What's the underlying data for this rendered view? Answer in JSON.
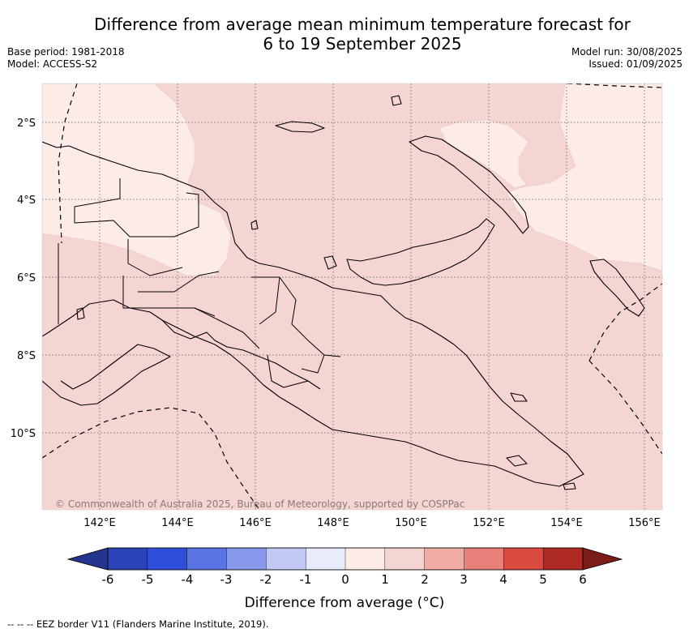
{
  "header": {
    "title_line1": "Difference from average mean minimum temperature forecast for",
    "title_line2": "6 to 19 September 2025",
    "base_period": "Base period: 1981-2018",
    "model": "Model: ACCESS-S2",
    "model_run": "Model run: 30/08/2025",
    "issued": "Issued: 01/09/2025"
  },
  "map": {
    "lat_labels": [
      "2°S",
      "4°S",
      "6°S",
      "8°S",
      "10°S"
    ],
    "lon_labels": [
      "142°E",
      "144°E",
      "146°E",
      "148°E",
      "150°E",
      "152°E",
      "154°E",
      "156°E"
    ],
    "copyright": "© Commonwealth of Australia 2025, Bureau of Meteorology, supported by COSPPac",
    "colors": {
      "anomaly_0_1": "#fdebe8",
      "anomaly_1_2": "#f5d5d1",
      "land_outline": "#000000"
    }
  },
  "colorbar": {
    "ticks": [
      "-6",
      "-5",
      "-4",
      "-3",
      "-2",
      "-1",
      "0",
      "1",
      "2",
      "3",
      "4",
      "5",
      "6"
    ],
    "colors": [
      "#23358f",
      "#2a44b8",
      "#2f4fdb",
      "#5a74e3",
      "#8797ea",
      "#c1c8f3",
      "#e8ebfa",
      "#fdebe8",
      "#f5d5d1",
      "#f0aca5",
      "#e98079",
      "#db4a3f",
      "#ae2a22",
      "#7a1c18"
    ],
    "label": "Difference from average (°C)"
  },
  "footer": {
    "eez_legend": "--  --  -- EEZ border V11 (Flanders Marine Institute, 2019)."
  }
}
